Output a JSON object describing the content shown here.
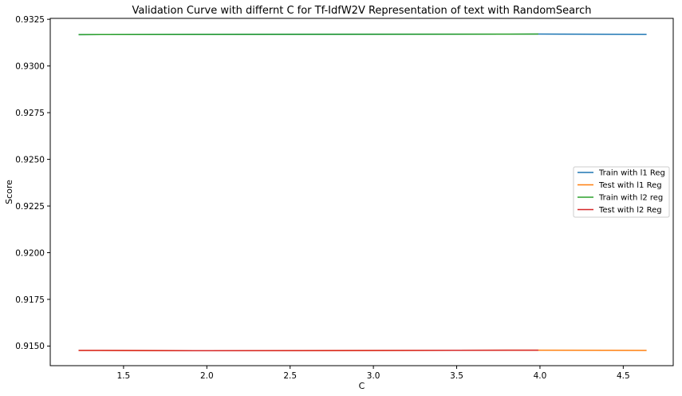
{
  "chart_data": {
    "type": "line",
    "title": "Validation Curve with differnt C for Tf-IdfW2V Representation of text with RandomSearch",
    "xlabel": "C",
    "ylabel": "Score",
    "xlim": [
      1.06,
      4.8
    ],
    "ylim": [
      0.91395,
      0.93255
    ],
    "xticks": [
      "1.5",
      "2.0",
      "2.5",
      "3.0",
      "3.5",
      "4.0",
      "4.5"
    ],
    "yticks": [
      "0.9150",
      "0.9175",
      "0.9200",
      "0.9225",
      "0.9250",
      "0.9275",
      "0.9300",
      "0.9325"
    ],
    "grid": false,
    "legend_position": "center-right",
    "series": [
      {
        "name": "Train with l1 Reg",
        "color": "#1f77b4",
        "x": [
          1.23,
          1.93,
          3.99,
          4.64
        ],
        "y": [
          0.93168,
          0.93169,
          0.93171,
          0.93169
        ]
      },
      {
        "name": "Test with l1 Reg",
        "color": "#ff7f0e",
        "x": [
          1.23,
          1.93,
          3.99,
          4.64
        ],
        "y": [
          0.91477,
          0.91475,
          0.91478,
          0.91477
        ]
      },
      {
        "name": "Train with l2 reg",
        "color": "#2ca02c",
        "x": [
          1.23,
          1.93,
          3.99
        ],
        "y": [
          0.93168,
          0.93169,
          0.93171
        ]
      },
      {
        "name": "Test with l2 Reg",
        "color": "#d62728",
        "x": [
          1.23,
          1.93,
          3.99
        ],
        "y": [
          0.91477,
          0.91475,
          0.91478
        ]
      }
    ]
  }
}
